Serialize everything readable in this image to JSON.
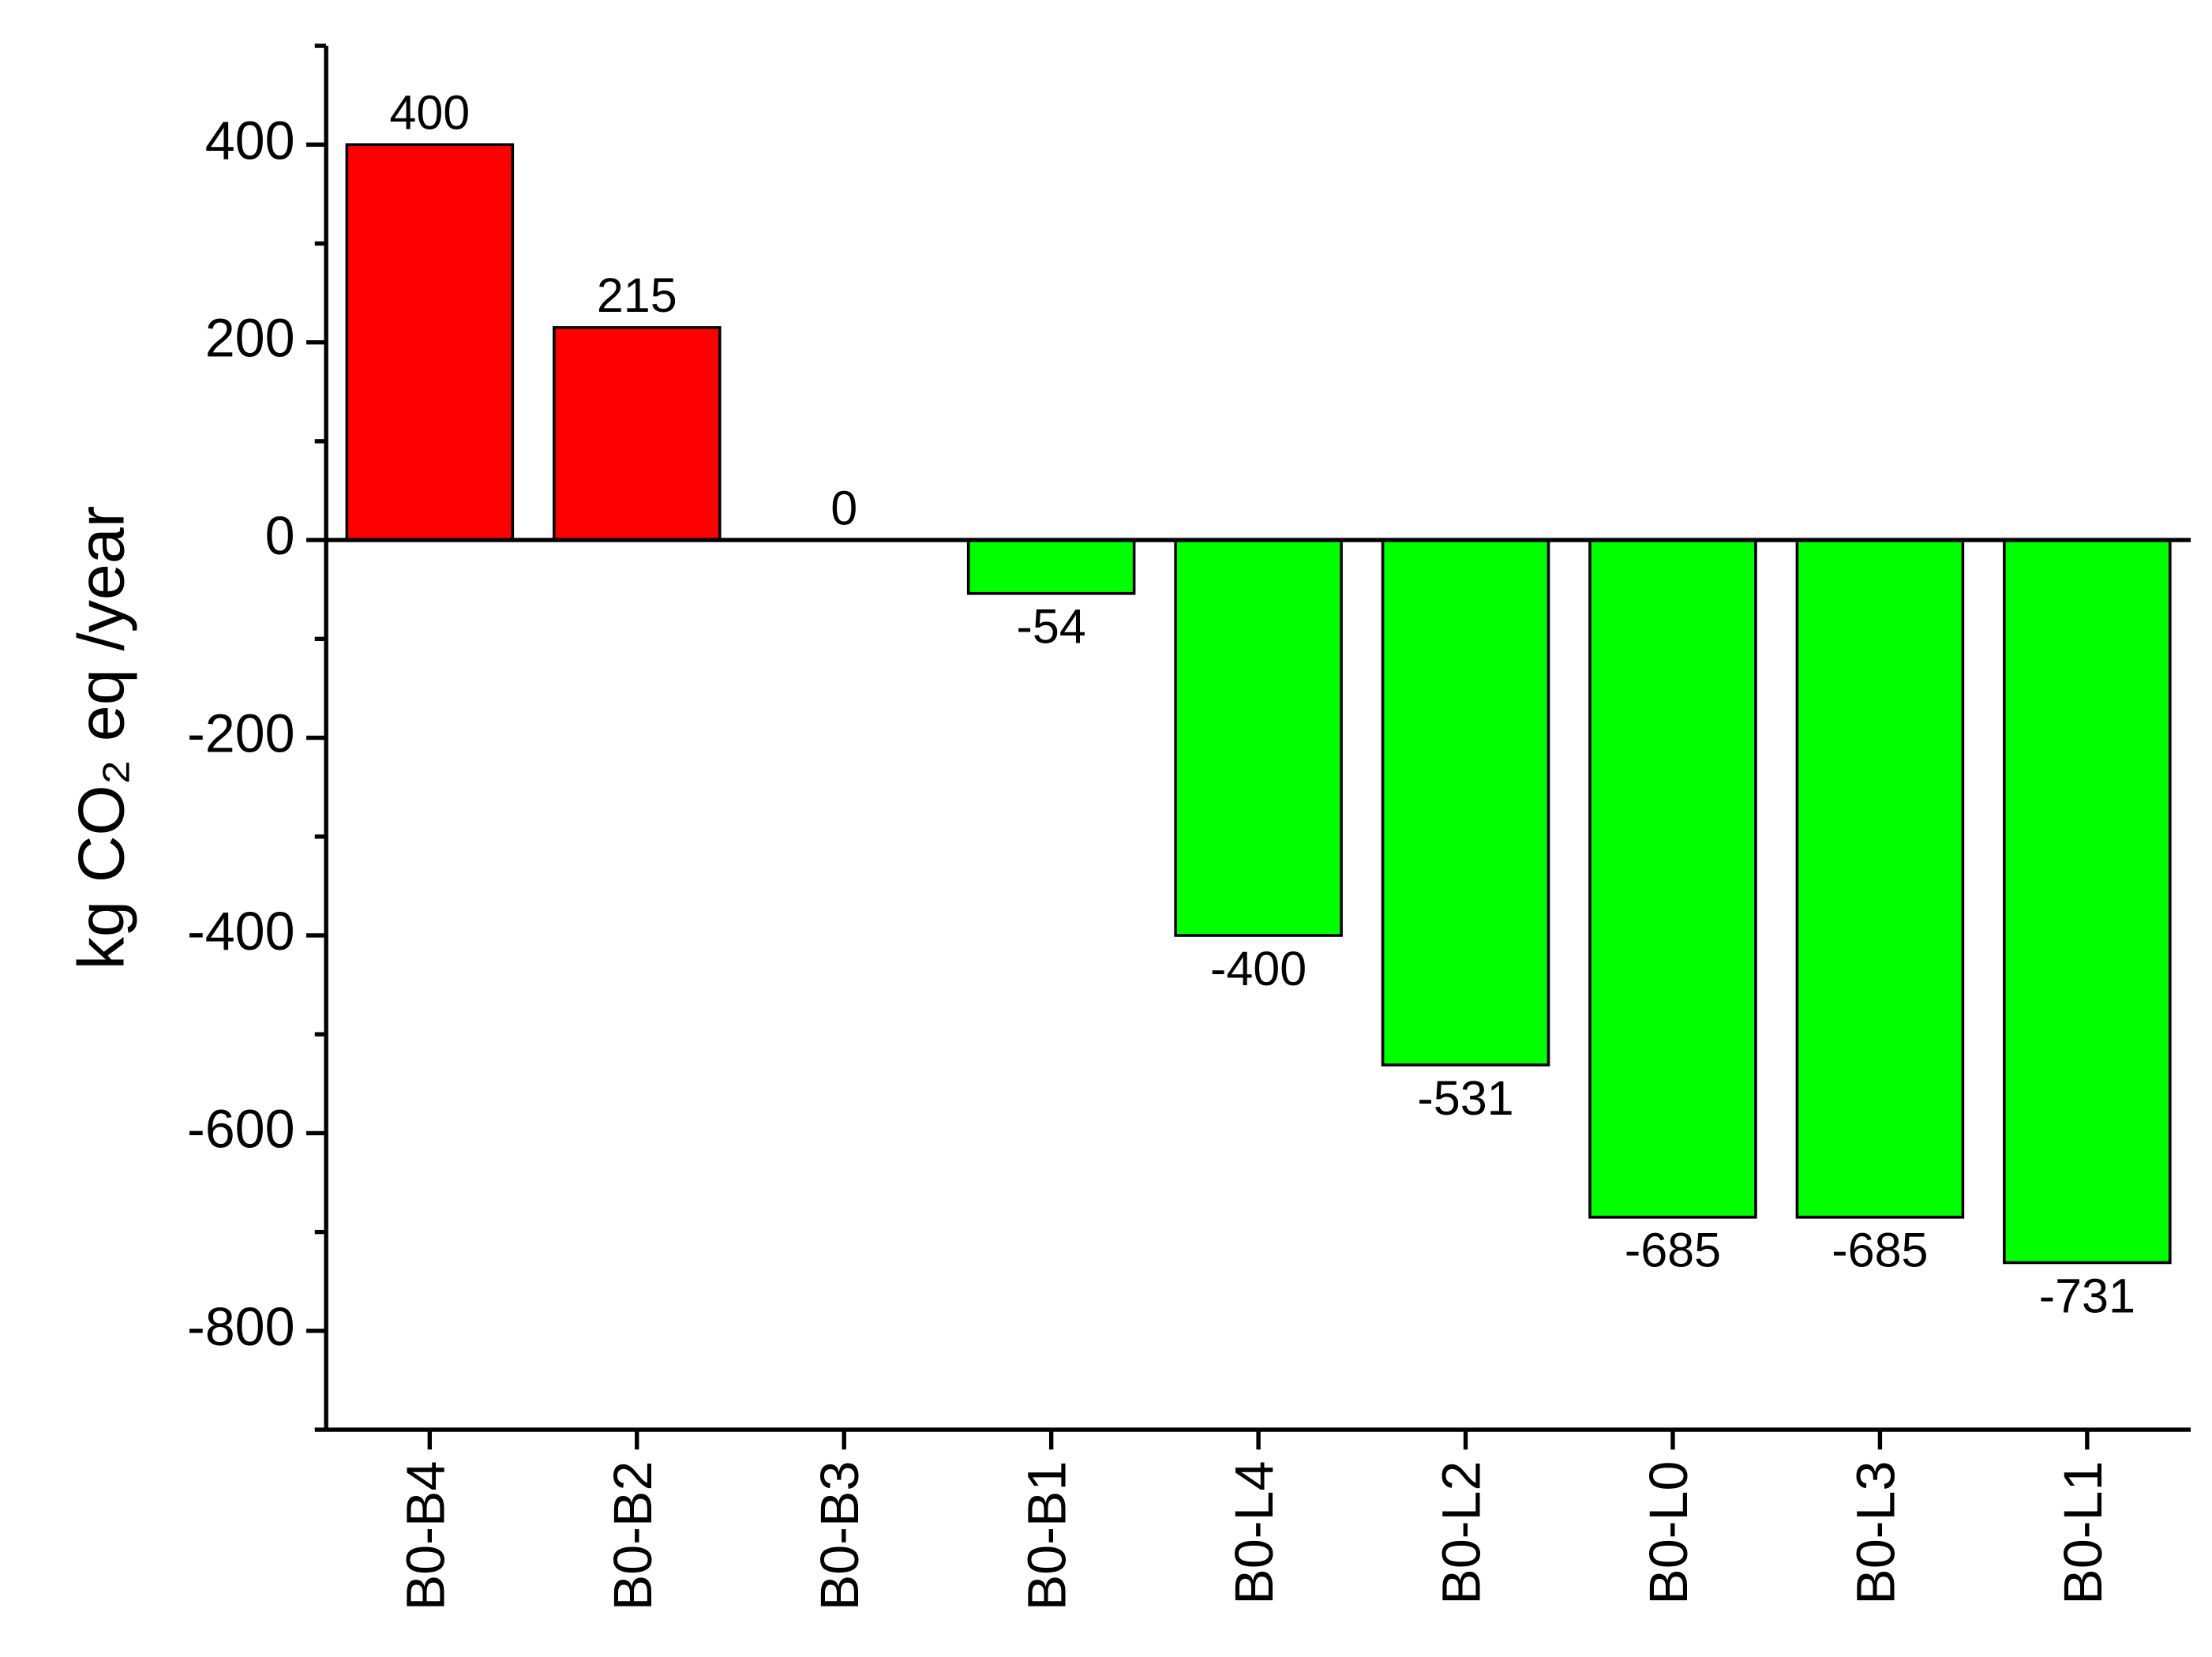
{
  "chart_data": {
    "type": "bar",
    "ylabel": "kg CO₂ eq /year",
    "categories": [
      "B0-B4",
      "B0-B2",
      "B0-B3",
      "B0-B1",
      "B0-L4",
      "B0-L2",
      "B0-L0",
      "B0-L3",
      "B0-L1"
    ],
    "values": [
      400,
      215,
      0,
      -54,
      -400,
      -531,
      -685,
      -685,
      -731
    ],
    "colors": [
      "#ff0000",
      "#ff0000",
      "#ff0000",
      "#00ff00",
      "#00ff00",
      "#00ff00",
      "#00ff00",
      "#00ff00",
      "#00ff00"
    ],
    "ylim": [
      -900,
      500
    ],
    "yticks": [
      -800,
      -600,
      -400,
      -200,
      0,
      200,
      400
    ],
    "grid": false
  }
}
